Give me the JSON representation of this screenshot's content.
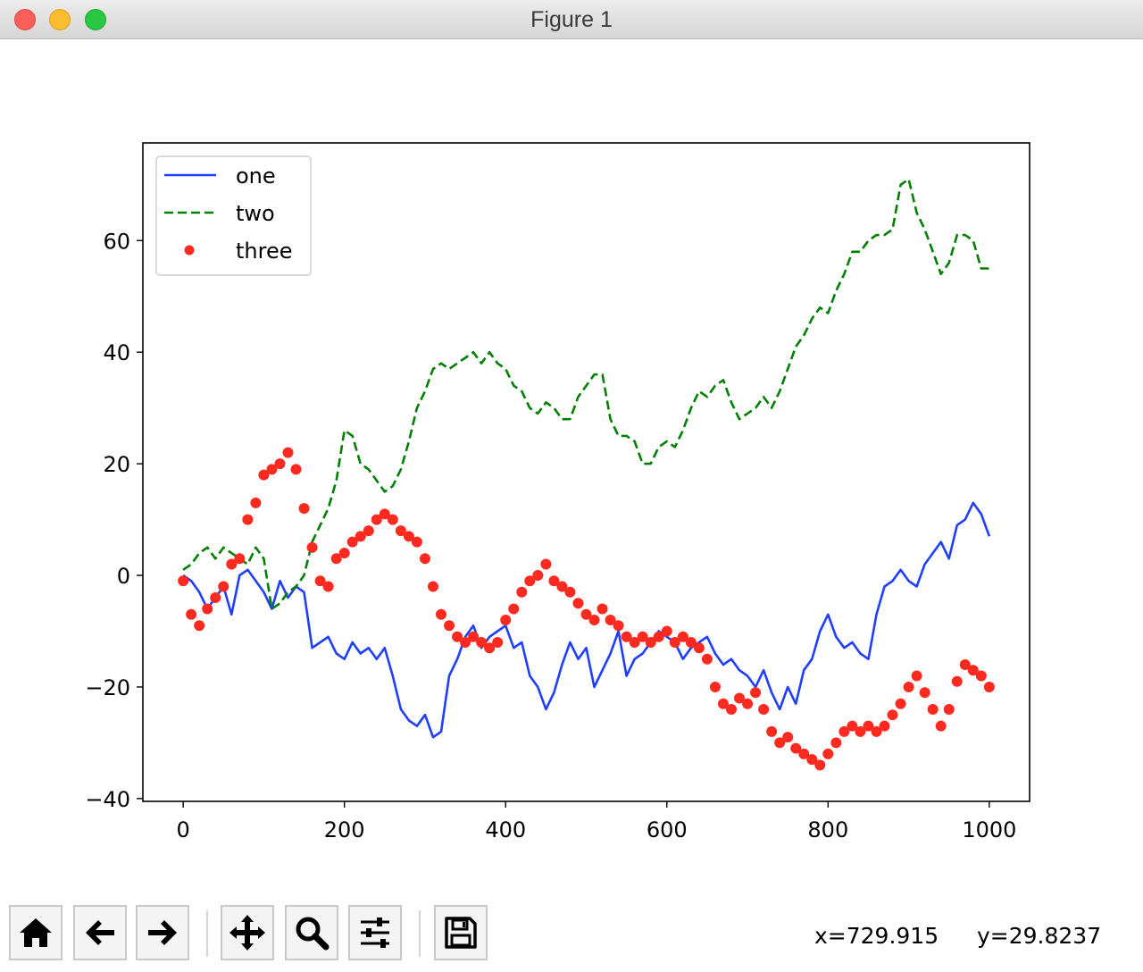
{
  "window": {
    "title": "Figure 1"
  },
  "toolbar": {
    "buttons": [
      {
        "name": "home-button",
        "icon": "home-icon"
      },
      {
        "name": "back-button",
        "icon": "arrow-left-icon"
      },
      {
        "name": "forward-button",
        "icon": "arrow-right-icon"
      },
      {
        "name": "pan-button",
        "icon": "move-icon"
      },
      {
        "name": "zoom-button",
        "icon": "magnifier-icon"
      },
      {
        "name": "configure-subplots-button",
        "icon": "sliders-icon"
      },
      {
        "name": "save-button",
        "icon": "floppy-disk-icon"
      }
    ],
    "x_readout": "x=729.915",
    "y_readout": "y=29.8237"
  },
  "chart_data": {
    "type": "line",
    "title": "",
    "xlabel": "",
    "ylabel": "",
    "xlim": [
      -50,
      1050
    ],
    "ylim": [
      -40.5,
      77.5
    ],
    "xticks": [
      0,
      200,
      400,
      600,
      800,
      1000
    ],
    "xtick_labels": [
      "0",
      "200",
      "400",
      "600",
      "800",
      "1000"
    ],
    "yticks": [
      -40,
      -20,
      0,
      20,
      40,
      60
    ],
    "ytick_labels": [
      "−40",
      "−20",
      "0",
      "20",
      "40",
      "60"
    ],
    "grid": false,
    "legend_position": "top-left",
    "series": [
      {
        "name": "one",
        "style": "solid",
        "color": "#1f3fff",
        "x": [
          0,
          10,
          20,
          30,
          40,
          50,
          60,
          70,
          80,
          90,
          100,
          110,
          120,
          130,
          140,
          150,
          160,
          170,
          180,
          190,
          200,
          210,
          220,
          230,
          240,
          250,
          260,
          270,
          280,
          290,
          300,
          310,
          320,
          330,
          340,
          350,
          360,
          370,
          380,
          390,
          400,
          410,
          420,
          430,
          440,
          450,
          460,
          470,
          480,
          490,
          500,
          510,
          520,
          530,
          540,
          550,
          560,
          570,
          580,
          590,
          600,
          610,
          620,
          630,
          640,
          650,
          660,
          670,
          680,
          690,
          700,
          710,
          720,
          730,
          740,
          750,
          760,
          770,
          780,
          790,
          800,
          810,
          820,
          830,
          840,
          850,
          860,
          870,
          880,
          890,
          900,
          910,
          920,
          930,
          940,
          950,
          960,
          970,
          980,
          990,
          1000
        ],
        "y": [
          0,
          -1,
          -3,
          -6,
          -4,
          -2,
          -7,
          0,
          1,
          -1,
          -3,
          -6,
          -1,
          -4,
          -2,
          -3,
          -13,
          -12,
          -11,
          -14,
          -15,
          -12,
          -14,
          -13,
          -15,
          -13,
          -18,
          -24,
          -26,
          -27,
          -25,
          -29,
          -28,
          -18,
          -15,
          -11,
          -9,
          -13,
          -11,
          -10,
          -9,
          -13,
          -12,
          -18,
          -20,
          -24,
          -21,
          -16,
          -12,
          -15,
          -13,
          -20,
          -17,
          -14,
          -10,
          -18,
          -15,
          -14,
          -12,
          -10,
          -11,
          -12,
          -15,
          -13,
          -12,
          -11,
          -14,
          -16,
          -15,
          -17,
          -18,
          -20,
          -17,
          -21,
          -24,
          -20,
          -23,
          -17,
          -15,
          -10,
          -7,
          -11,
          -13,
          -12,
          -14,
          -15,
          -7,
          -2,
          -1,
          1,
          -1,
          -2,
          2,
          4,
          6,
          3,
          9,
          10,
          13,
          11,
          7
        ]
      },
      {
        "name": "two",
        "style": "dashed",
        "color": "#008000",
        "x": [
          0,
          10,
          20,
          30,
          40,
          50,
          60,
          70,
          80,
          90,
          100,
          110,
          120,
          130,
          140,
          150,
          160,
          170,
          180,
          190,
          200,
          210,
          220,
          230,
          240,
          250,
          260,
          270,
          280,
          290,
          300,
          310,
          320,
          330,
          340,
          350,
          360,
          370,
          380,
          390,
          400,
          410,
          420,
          430,
          440,
          450,
          460,
          470,
          480,
          490,
          500,
          510,
          520,
          530,
          540,
          550,
          560,
          570,
          580,
          590,
          600,
          610,
          620,
          630,
          640,
          650,
          660,
          670,
          680,
          690,
          700,
          710,
          720,
          730,
          740,
          750,
          760,
          770,
          780,
          790,
          800,
          810,
          820,
          830,
          840,
          850,
          860,
          870,
          880,
          890,
          900,
          910,
          920,
          930,
          940,
          950,
          960,
          970,
          980,
          990,
          1000
        ],
        "y": [
          1,
          2,
          4,
          5,
          3,
          5,
          4,
          3,
          2,
          5,
          3,
          -6,
          -5,
          -3,
          -2,
          0,
          6,
          9,
          12,
          17,
          26,
          25,
          20,
          19,
          17,
          15,
          16,
          19,
          24,
          30,
          33,
          37,
          38,
          37,
          38,
          39,
          40,
          38,
          40,
          38,
          37,
          34,
          33,
          30,
          29,
          31,
          30,
          28,
          28,
          32,
          34,
          36,
          36,
          28,
          25,
          25,
          24,
          20,
          20,
          23,
          24,
          23,
          26,
          30,
          33,
          32,
          34,
          35,
          31,
          28,
          29,
          30,
          32,
          30,
          33,
          37,
          41,
          43,
          46,
          48,
          47,
          51,
          54,
          58,
          58,
          60,
          61,
          61,
          62,
          70,
          71,
          65,
          62,
          58,
          54,
          56,
          61,
          61,
          60,
          55,
          55
        ]
      },
      {
        "name": "three",
        "style": "dots",
        "color": "#ff2a1f",
        "x": [
          0,
          10,
          20,
          30,
          40,
          50,
          60,
          70,
          80,
          90,
          100,
          110,
          120,
          130,
          140,
          150,
          160,
          170,
          180,
          190,
          200,
          210,
          220,
          230,
          240,
          250,
          260,
          270,
          280,
          290,
          300,
          310,
          320,
          330,
          340,
          350,
          360,
          370,
          380,
          390,
          400,
          410,
          420,
          430,
          440,
          450,
          460,
          470,
          480,
          490,
          500,
          510,
          520,
          530,
          540,
          550,
          560,
          570,
          580,
          590,
          600,
          610,
          620,
          630,
          640,
          650,
          660,
          670,
          680,
          690,
          700,
          710,
          720,
          730,
          740,
          750,
          760,
          770,
          780,
          790,
          800,
          810,
          820,
          830,
          840,
          850,
          860,
          870,
          880,
          890,
          900,
          910,
          920,
          930,
          940,
          950,
          960,
          970,
          980,
          990,
          1000
        ],
        "y": [
          -1,
          -7,
          -9,
          -6,
          -4,
          -2,
          2,
          3,
          10,
          13,
          18,
          19,
          20,
          22,
          19,
          12,
          5,
          -1,
          -2,
          3,
          4,
          6,
          7,
          8,
          10,
          11,
          10,
          8,
          7,
          6,
          3,
          -2,
          -7,
          -9,
          -11,
          -12,
          -11,
          -12,
          -13,
          -12,
          -8,
          -6,
          -3,
          -1,
          0,
          2,
          -1,
          -2,
          -3,
          -5,
          -7,
          -8,
          -6,
          -8,
          -9,
          -11,
          -12,
          -11,
          -12,
          -11,
          -10,
          -12,
          -11,
          -12,
          -13,
          -15,
          -20,
          -23,
          -24,
          -22,
          -23,
          -21,
          -24,
          -28,
          -30,
          -29,
          -31,
          -32,
          -33,
          -34,
          -32,
          -30,
          -28,
          -27,
          -28,
          -27,
          -28,
          -27,
          -25,
          -23,
          -20,
          -18,
          -21,
          -24,
          -27,
          -24,
          -19,
          -16,
          -17,
          -18,
          -20
        ]
      }
    ]
  }
}
